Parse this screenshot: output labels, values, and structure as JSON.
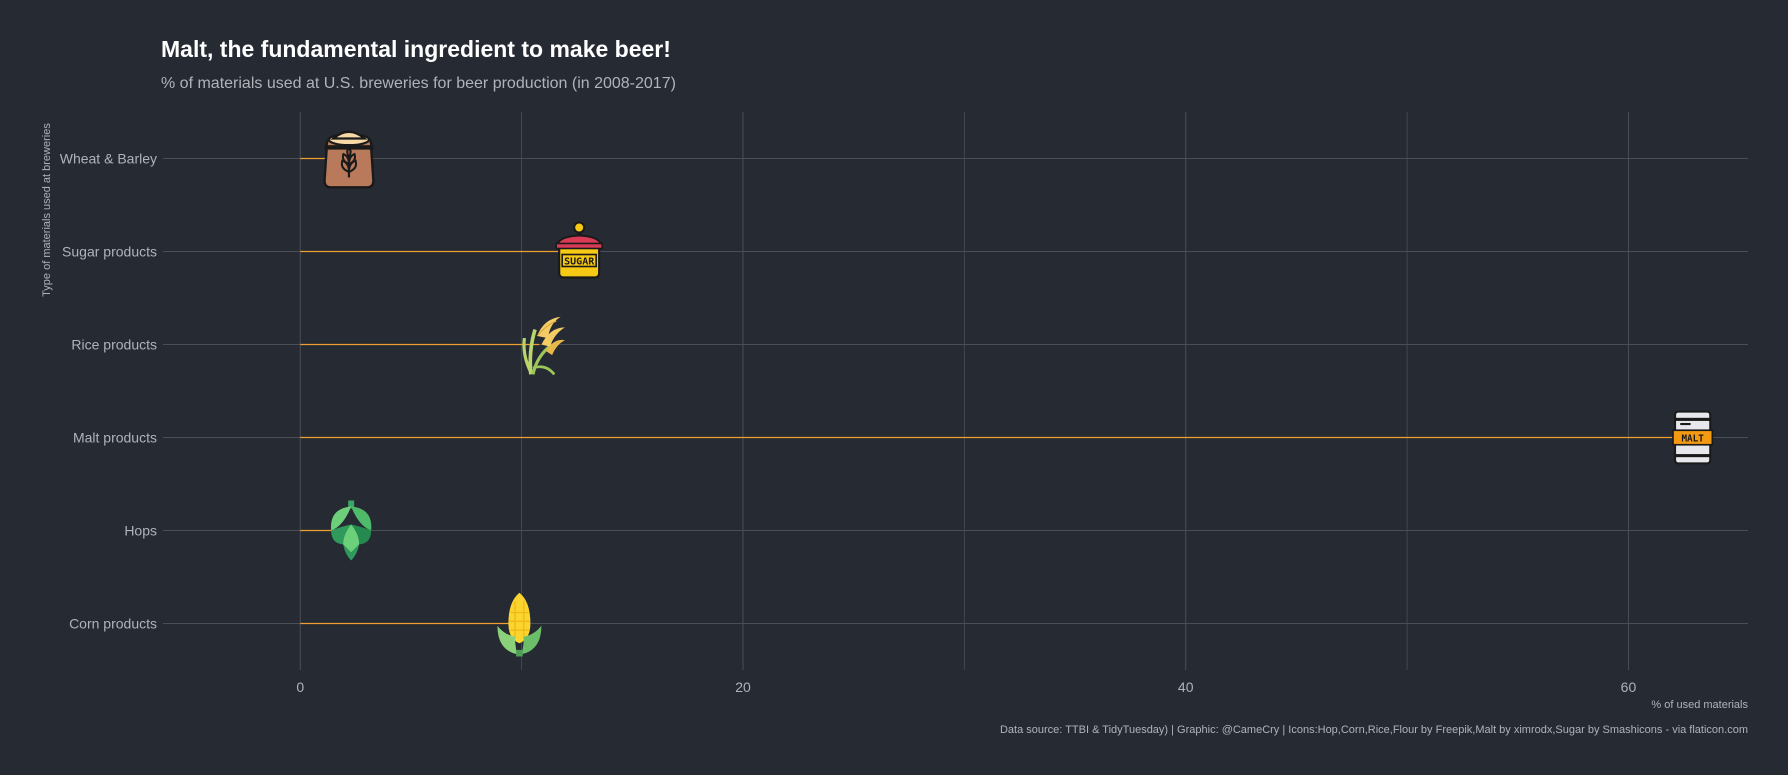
{
  "page": {
    "title": "Malt, the fundamental ingredient to make beer!",
    "subtitle": "% of materials used at U.S. breweries for beer production (in 2008-2017)",
    "caption": "Data source: TTBI & TidyTuesday) | Graphic: @CameCry | Icons:Hop,Corn,Rice,Flour by Freepik,Malt by ximrodx,Sugar by Smashicons - via flaticon.com"
  },
  "colors": {
    "background": "#262a33",
    "grid": "#4a4e56",
    "line": "#f0a030",
    "text": "#b0b3b9",
    "title": "#ffffff"
  },
  "chart_data": {
    "type": "bar",
    "orientation": "horizontal",
    "style": "lollipop with icon markers",
    "categories": [
      "Corn products",
      "Hops",
      "Malt products",
      "Rice products",
      "Sugar products",
      "Wheat & Barley"
    ],
    "values": [
      9.9,
      2.3,
      62.9,
      10.8,
      12.6,
      2.2
    ],
    "icons": [
      "corn-icon",
      "hop-icon",
      "malt-barrel-icon",
      "rice-icon",
      "sugar-jar-icon",
      "flour-sack-icon"
    ],
    "title": "Malt, the fundamental ingredient to make beer!",
    "subtitle": "% of materials used at U.S. breweries for beer production (in 2008-2017)",
    "xlabel": "% of used materials",
    "ylabel": "Type of materials used at breweries",
    "xlim": [
      -6.2,
      65.4
    ],
    "xticks": [
      0,
      20,
      40,
      60
    ],
    "grid": true,
    "legend": "none"
  }
}
